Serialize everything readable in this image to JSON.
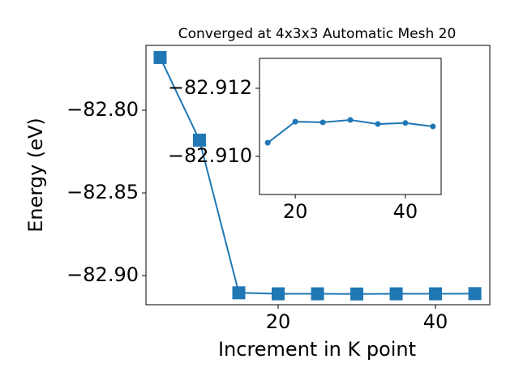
{
  "chart_data": [
    {
      "type": "line",
      "title": "Converged at 4x3x3 Automatic Mesh 20",
      "x_label": "Increment in K point",
      "y_label": "Energy (eV)",
      "x": [
        5,
        10,
        15,
        20,
        25,
        30,
        35,
        40,
        45
      ],
      "series": [
        {
          "color": "#1f77b4",
          "marker": "square",
          "values": [
            -82.7681,
            -82.8181,
            -82.9104,
            -82.911,
            -82.911,
            -82.9111,
            -82.911,
            -82.911,
            -82.9109
          ]
        }
      ],
      "xlim": [
        3.2,
        46.9
      ],
      "ylim": [
        -82.9176,
        -82.7608
      ],
      "xticks": [
        20,
        40
      ],
      "yticks": [
        {
          "value": -82.9,
          "label": "−82.90"
        },
        {
          "value": -82.85,
          "label": "−82.85"
        },
        {
          "value": -82.8,
          "label": "−82.80"
        }
      ]
    },
    {
      "type": "line",
      "x": [
        15,
        20,
        25,
        30,
        35,
        40,
        45
      ],
      "series": [
        {
          "color": "#1f77b4",
          "marker": "circle",
          "values": [
            -82.9104,
            -82.91102,
            -82.911,
            -82.91107,
            -82.91095,
            -82.91098,
            -82.91088
          ]
        }
      ],
      "xlim": [
        13.5,
        46.5
      ],
      "ylim": [
        -82.90888,
        -82.91288
      ],
      "xticks": [
        20,
        40
      ],
      "yticks": [
        {
          "value": -82.912,
          "label": "−82.912"
        },
        {
          "value": -82.91,
          "label": "−82.910"
        }
      ]
    }
  ]
}
